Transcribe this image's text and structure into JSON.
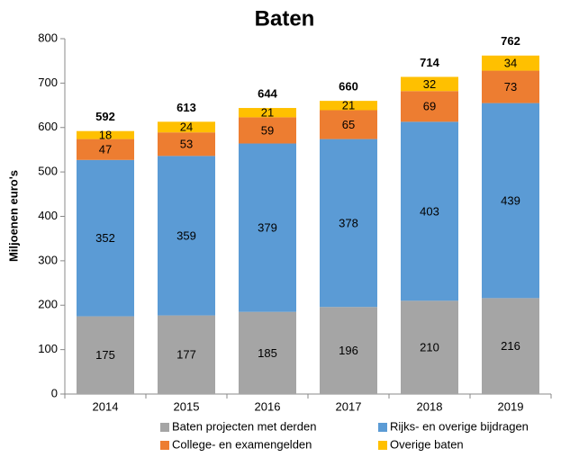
{
  "chart_data": {
    "type": "stacked_bar",
    "title": "Baten",
    "y_label": "Miljoenen euro's",
    "categories": [
      "2014",
      "2015",
      "2016",
      "2017",
      "2018",
      "2019"
    ],
    "series": [
      {
        "name": "Baten projecten met derden",
        "color": "#a5a5a5",
        "values": [
          175,
          177,
          185,
          196,
          210,
          216
        ]
      },
      {
        "name": "Rijks- en overige bijdragen",
        "color": "#5b9bd5",
        "values": [
          352,
          359,
          379,
          378,
          403,
          439
        ]
      },
      {
        "name": "College- en examengelden",
        "color": "#ed7d31",
        "values": [
          47,
          53,
          59,
          65,
          69,
          73
        ]
      },
      {
        "name": "Overige baten",
        "color": "#ffc000",
        "values": [
          18,
          24,
          21,
          21,
          32,
          34
        ]
      }
    ],
    "totals": [
      592,
      613,
      644,
      660,
      714,
      762
    ],
    "ylim": [
      0,
      800
    ],
    "yticks": [
      0,
      100,
      200,
      300,
      400,
      500,
      600,
      700,
      800
    ],
    "grid": false
  }
}
